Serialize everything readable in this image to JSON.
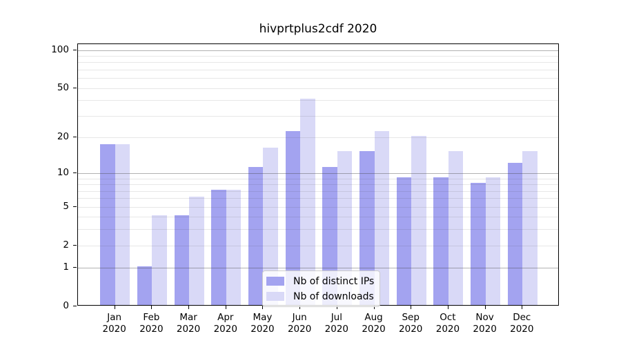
{
  "chart_data": {
    "type": "bar",
    "title": "hivprtplus2cdf 2020",
    "categories": [
      "Jan",
      "Feb",
      "Mar",
      "Apr",
      "May",
      "Jun",
      "Jul",
      "Aug",
      "Sep",
      "Oct",
      "Nov",
      "Dec"
    ],
    "year_label": "2020",
    "series": [
      {
        "name": "Nb of distinct IPs",
        "color": "#a3a3f0",
        "values": [
          17,
          1,
          4,
          7,
          11,
          22,
          11,
          15,
          9,
          9,
          8,
          12
        ]
      },
      {
        "name": "Nb of downloads",
        "color": "#d9d9f7",
        "values": [
          17,
          4,
          6,
          7,
          16,
          40,
          15,
          22,
          20,
          15,
          9,
          15
        ]
      }
    ],
    "xlabel": "",
    "ylabel": "",
    "y_scale": "log10(1+x)",
    "y_axis_top_log_value": 2.0503,
    "y_ticks": [
      100,
      50,
      20,
      10,
      5,
      2,
      1,
      0
    ],
    "major_gridlines": [
      1,
      10,
      100
    ],
    "minor_gridlines": [
      2,
      3,
      4,
      5,
      6,
      7,
      8,
      9,
      20,
      30,
      40,
      50,
      60,
      70,
      80,
      90
    ],
    "grid": "on, drawn over bars",
    "legend_position": "lower center",
    "colors": {
      "major_grid": "#b1b1b1",
      "minor_grid": "#e9e9e9",
      "axis": "#000000",
      "background": "#ffffff"
    }
  }
}
